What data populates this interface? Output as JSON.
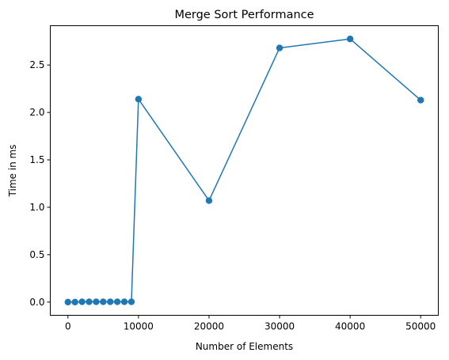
{
  "chart_data": {
    "type": "line",
    "title": "Merge Sort Performance",
    "xlabel": "Number of Elements",
    "ylabel": "Time in ms",
    "xlim": [
      -2500,
      52500
    ],
    "ylim": [
      -0.1393,
      2.9145
    ],
    "x_ticks": [
      0,
      10000,
      20000,
      30000,
      40000,
      50000
    ],
    "x_tick_labels": [
      "0",
      "10000",
      "20000",
      "30000",
      "40000",
      "50000"
    ],
    "y_ticks": [
      0.0,
      0.5,
      1.0,
      1.5,
      2.0,
      2.5
    ],
    "y_tick_labels": [
      "0.0",
      "0.5",
      "1.0",
      "1.5",
      "2.0",
      "2.5"
    ],
    "grid": false,
    "legend": "none",
    "markers": "circle",
    "series": [
      {
        "color": "#1f77b4",
        "x": [
          0,
          1000,
          2000,
          3000,
          4000,
          5000,
          6000,
          7000,
          8000,
          9000,
          10000,
          20000,
          30000,
          40000,
          50000
        ],
        "y": [
          0.0,
          0.0,
          0.003,
          0.003,
          0.003,
          0.003,
          0.003,
          0.003,
          0.003,
          0.003,
          2.14,
          1.07,
          2.68,
          2.775,
          2.13
        ]
      }
    ]
  }
}
